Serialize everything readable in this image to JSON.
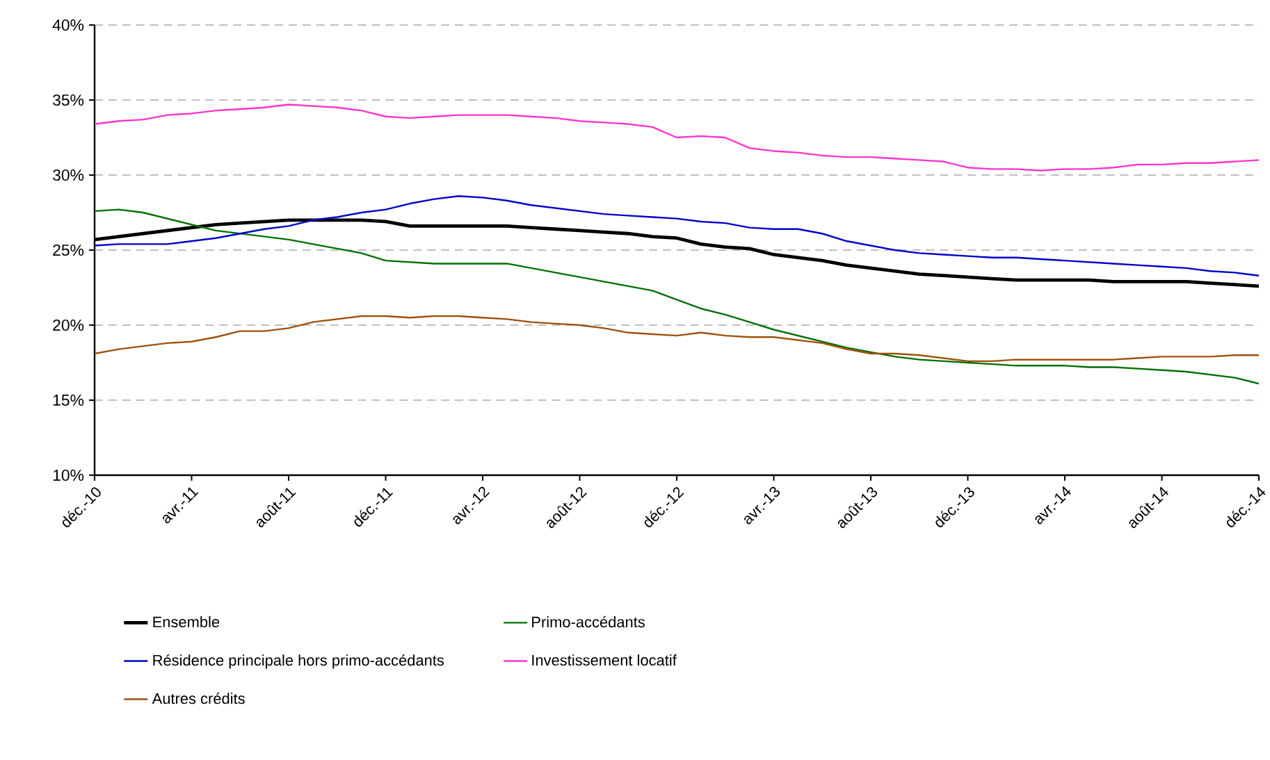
{
  "chart_data": {
    "type": "line",
    "categories": [
      "déc.-10",
      null,
      null,
      null,
      "avr.-11",
      null,
      null,
      null,
      "août-11",
      null,
      null,
      null,
      "déc.-11",
      null,
      null,
      null,
      "avr.-12",
      null,
      null,
      null,
      "août-12",
      null,
      null,
      null,
      "déc.-12",
      null,
      null,
      null,
      "avr.-13",
      null,
      null,
      null,
      "août-13",
      null,
      null,
      null,
      "déc.-13",
      null,
      null,
      null,
      "avr.-14",
      null,
      null,
      null,
      "août-14",
      null,
      null,
      null,
      "déc.-14"
    ],
    "ylim": [
      10,
      40
    ],
    "yticks": [
      {
        "value": 10,
        "label": "10%"
      },
      {
        "value": 15,
        "label": "15%"
      },
      {
        "value": 20,
        "label": "20%"
      },
      {
        "value": 25,
        "label": "25%"
      },
      {
        "value": 30,
        "label": "30%"
      },
      {
        "value": 35,
        "label": "35%"
      },
      {
        "value": 40,
        "label": "40%"
      }
    ],
    "grid": "y",
    "legend": "bottom",
    "marker": "none",
    "line_style": "solid",
    "series": [
      {
        "name": "Ensemble",
        "color": "#000000",
        "values": [
          25.7,
          25.9,
          26.1,
          26.3,
          26.5,
          26.7,
          26.8,
          26.9,
          27.0,
          27.0,
          27.0,
          27.0,
          26.9,
          26.6,
          26.6,
          26.6,
          26.6,
          26.6,
          26.5,
          26.4,
          26.3,
          26.2,
          26.1,
          25.9,
          25.8,
          25.4,
          25.2,
          25.1,
          24.7,
          24.5,
          24.3,
          24.0,
          23.8,
          23.6,
          23.4,
          23.3,
          23.2,
          23.1,
          23.0,
          23.0,
          23.0,
          23.0,
          22.9,
          22.9,
          22.9,
          22.9,
          22.8,
          22.7,
          22.6
        ]
      },
      {
        "name": "Primo-accédants",
        "color": "#007000",
        "values": [
          27.6,
          27.7,
          27.5,
          27.1,
          26.7,
          26.3,
          26.1,
          25.9,
          25.7,
          25.4,
          25.1,
          24.8,
          24.3,
          24.2,
          24.1,
          24.1,
          24.1,
          24.1,
          23.8,
          23.5,
          23.2,
          22.9,
          22.6,
          22.3,
          21.7,
          21.1,
          20.7,
          20.2,
          19.7,
          19.3,
          18.9,
          18.5,
          18.2,
          17.9,
          17.7,
          17.6,
          17.5,
          17.4,
          17.3,
          17.3,
          17.3,
          17.2,
          17.2,
          17.1,
          17.0,
          16.9,
          16.7,
          16.5,
          16.1
        ]
      },
      {
        "name": "Résidence principale hors primo-accédants",
        "color": "#0000cc",
        "values": [
          25.3,
          25.4,
          25.4,
          25.4,
          25.6,
          25.8,
          26.1,
          26.4,
          26.6,
          27.0,
          27.2,
          27.5,
          27.7,
          28.1,
          28.4,
          28.6,
          28.5,
          28.3,
          28.0,
          27.8,
          27.6,
          27.4,
          27.3,
          27.2,
          27.1,
          26.9,
          26.8,
          26.5,
          26.4,
          26.4,
          26.1,
          25.6,
          25.3,
          25.0,
          24.8,
          24.7,
          24.6,
          24.5,
          24.5,
          24.4,
          24.3,
          24.2,
          24.1,
          24.0,
          23.9,
          23.8,
          23.6,
          23.5,
          23.3
        ]
      },
      {
        "name": "Investissement locatif",
        "color": "#ff33cc",
        "values": [
          33.4,
          33.6,
          33.7,
          34.0,
          34.1,
          34.3,
          34.4,
          34.5,
          34.7,
          34.6,
          34.5,
          34.3,
          33.9,
          33.8,
          33.9,
          34.0,
          34.0,
          34.0,
          33.9,
          33.8,
          33.6,
          33.5,
          33.4,
          33.2,
          32.5,
          32.6,
          32.5,
          31.8,
          31.6,
          31.5,
          31.3,
          31.2,
          31.2,
          31.1,
          31.0,
          30.9,
          30.5,
          30.4,
          30.4,
          30.3,
          30.4,
          30.4,
          30.5,
          30.7,
          30.7,
          30.8,
          30.8,
          30.9,
          31.0
        ]
      },
      {
        "name": "Autres crédits",
        "color": "#a0500a",
        "values": [
          18.1,
          18.4,
          18.6,
          18.8,
          18.9,
          19.2,
          19.6,
          19.6,
          19.8,
          20.2,
          20.4,
          20.6,
          20.6,
          20.5,
          20.6,
          20.6,
          20.5,
          20.4,
          20.2,
          20.1,
          20.0,
          19.8,
          19.5,
          19.4,
          19.3,
          19.5,
          19.3,
          19.2,
          19.2,
          19.0,
          18.8,
          18.4,
          18.1,
          18.1,
          18.0,
          17.8,
          17.6,
          17.6,
          17.7,
          17.7,
          17.7,
          17.7,
          17.7,
          17.8,
          17.9,
          17.9,
          17.9,
          18.0,
          18.0
        ]
      }
    ]
  }
}
